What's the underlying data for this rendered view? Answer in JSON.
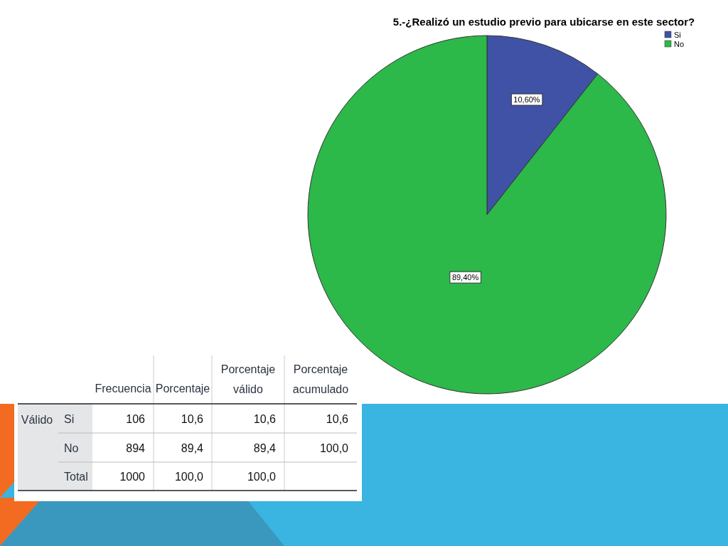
{
  "chart_data": [
    {
      "type": "pie",
      "title": "5.-¿Realizó un estudio previo para ubicarse en este sector?",
      "categories": [
        "Si",
        "No"
      ],
      "values": [
        10.6,
        89.4
      ],
      "colors": [
        "#3f52a5",
        "#2db84a"
      ],
      "value_labels": [
        "10,60%",
        "89,40%"
      ],
      "legend": "top right"
    },
    {
      "type": "other",
      "categories": [
        "Frecuencia",
        "Porcentaje",
        "Porcentaje válido",
        "Porcentaje acumulado"
      ],
      "y_categories": [
        "Si",
        "No",
        "Total"
      ],
      "annotations": [
        "Válido"
      ],
      "cell_labels": [
        [
          "106",
          "10,6",
          "10,6",
          "10,6"
        ],
        [
          "894",
          "89,4",
          "89,4",
          "100,0"
        ],
        [
          "1000",
          "100,0",
          "100,0",
          null
        ]
      ]
    }
  ]
}
